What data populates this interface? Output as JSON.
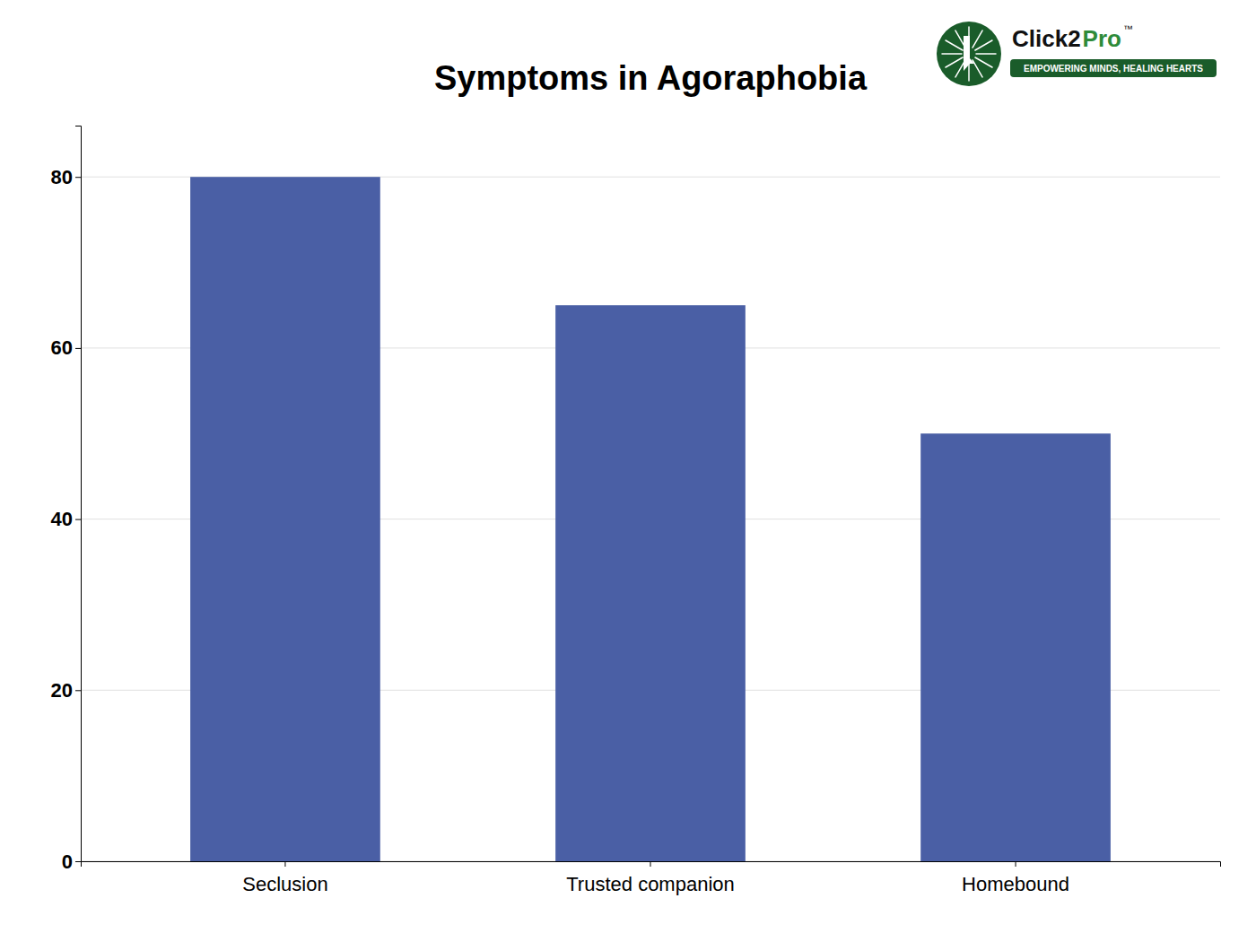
{
  "chart_data": {
    "type": "bar",
    "title": "Symptoms in Agoraphobia",
    "categories": [
      "Seclusion",
      "Trusted companion",
      "Homebound"
    ],
    "values": [
      80,
      65,
      50
    ],
    "color": "#4A5FA5",
    "ylim": [
      0,
      86
    ],
    "yticks": [
      0,
      20,
      40,
      60,
      80
    ],
    "grid": true,
    "annotations": [
      "Click2",
      "Pro",
      "™",
      "EMPOWERING MINDS, HEALING HEARTS"
    ]
  }
}
